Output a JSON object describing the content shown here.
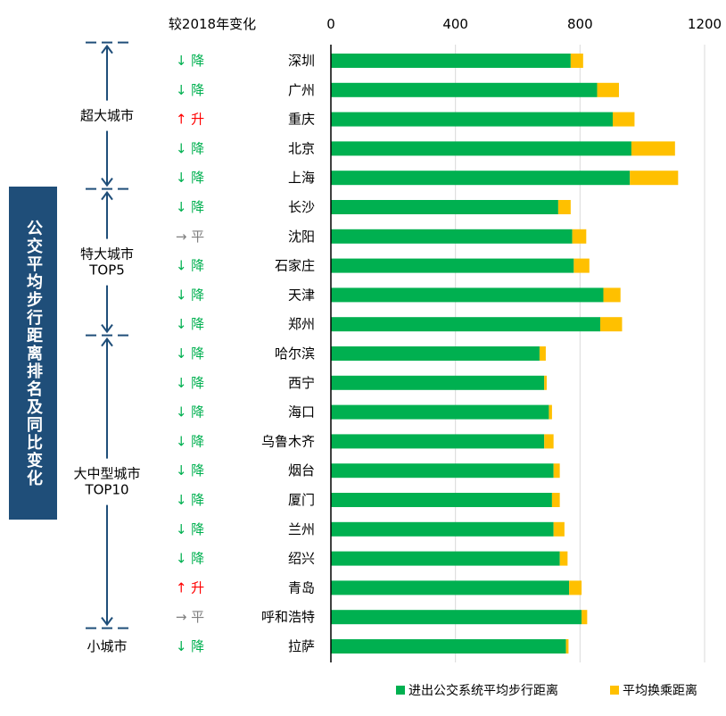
{
  "header": {
    "change_label": "较2018年变化"
  },
  "side_title": "公交平均步行距离排名及同比变化",
  "groups": [
    {
      "label": "超大城市",
      "cities": [
        "深圳",
        "广州",
        "重庆",
        "北京",
        "上海"
      ]
    },
    {
      "label": "特大城市\nTOP5",
      "cities": [
        "长沙",
        "沈阳",
        "石家庄",
        "天津",
        "郑州"
      ]
    },
    {
      "label": "大中型城市\nTOP10",
      "cities": [
        "哈尔滨",
        "西宁",
        "海口",
        "乌鲁木齐",
        "烟台",
        "厦门",
        "兰州",
        "绍兴",
        "青岛",
        "呼和浩特"
      ]
    },
    {
      "label": "小城市",
      "cities": [
        "拉萨"
      ]
    }
  ],
  "change_words": {
    "down": "降",
    "up": "升",
    "flat": "平"
  },
  "colors": {
    "walk": "#00b050",
    "transfer": "#ffc000",
    "down": "#00b050",
    "up": "#ff0000",
    "flat": "#7f7f7f",
    "accent": "#1f4e79"
  },
  "chart_data": {
    "type": "bar",
    "orientation": "horizontal",
    "stacked": true,
    "categories": [
      "深圳",
      "广州",
      "重庆",
      "北京",
      "上海",
      "长沙",
      "沈阳",
      "石家庄",
      "天津",
      "郑州",
      "哈尔滨",
      "西宁",
      "海口",
      "乌鲁木齐",
      "烟台",
      "厦门",
      "兰州",
      "绍兴",
      "青岛",
      "呼和浩特",
      "拉萨"
    ],
    "series": [
      {
        "name": "进出公交系统平均步行距离",
        "values": [
          770,
          855,
          905,
          965,
          960,
          730,
          775,
          780,
          875,
          865,
          670,
          685,
          700,
          685,
          715,
          710,
          715,
          735,
          765,
          805,
          755
        ]
      },
      {
        "name": "平均换乘距离",
        "values": [
          40,
          70,
          70,
          140,
          155,
          40,
          45,
          50,
          55,
          70,
          20,
          8,
          10,
          30,
          20,
          25,
          35,
          25,
          40,
          18,
          8
        ]
      }
    ],
    "change": [
      "down",
      "down",
      "up",
      "down",
      "down",
      "down",
      "flat",
      "down",
      "down",
      "down",
      "down",
      "down",
      "down",
      "down",
      "down",
      "down",
      "down",
      "down",
      "up",
      "flat",
      "down"
    ],
    "xlim": [
      0,
      1200
    ],
    "xticks": [
      0,
      400,
      800,
      1200
    ],
    "grid": true,
    "legend_position": "bottom-right"
  }
}
